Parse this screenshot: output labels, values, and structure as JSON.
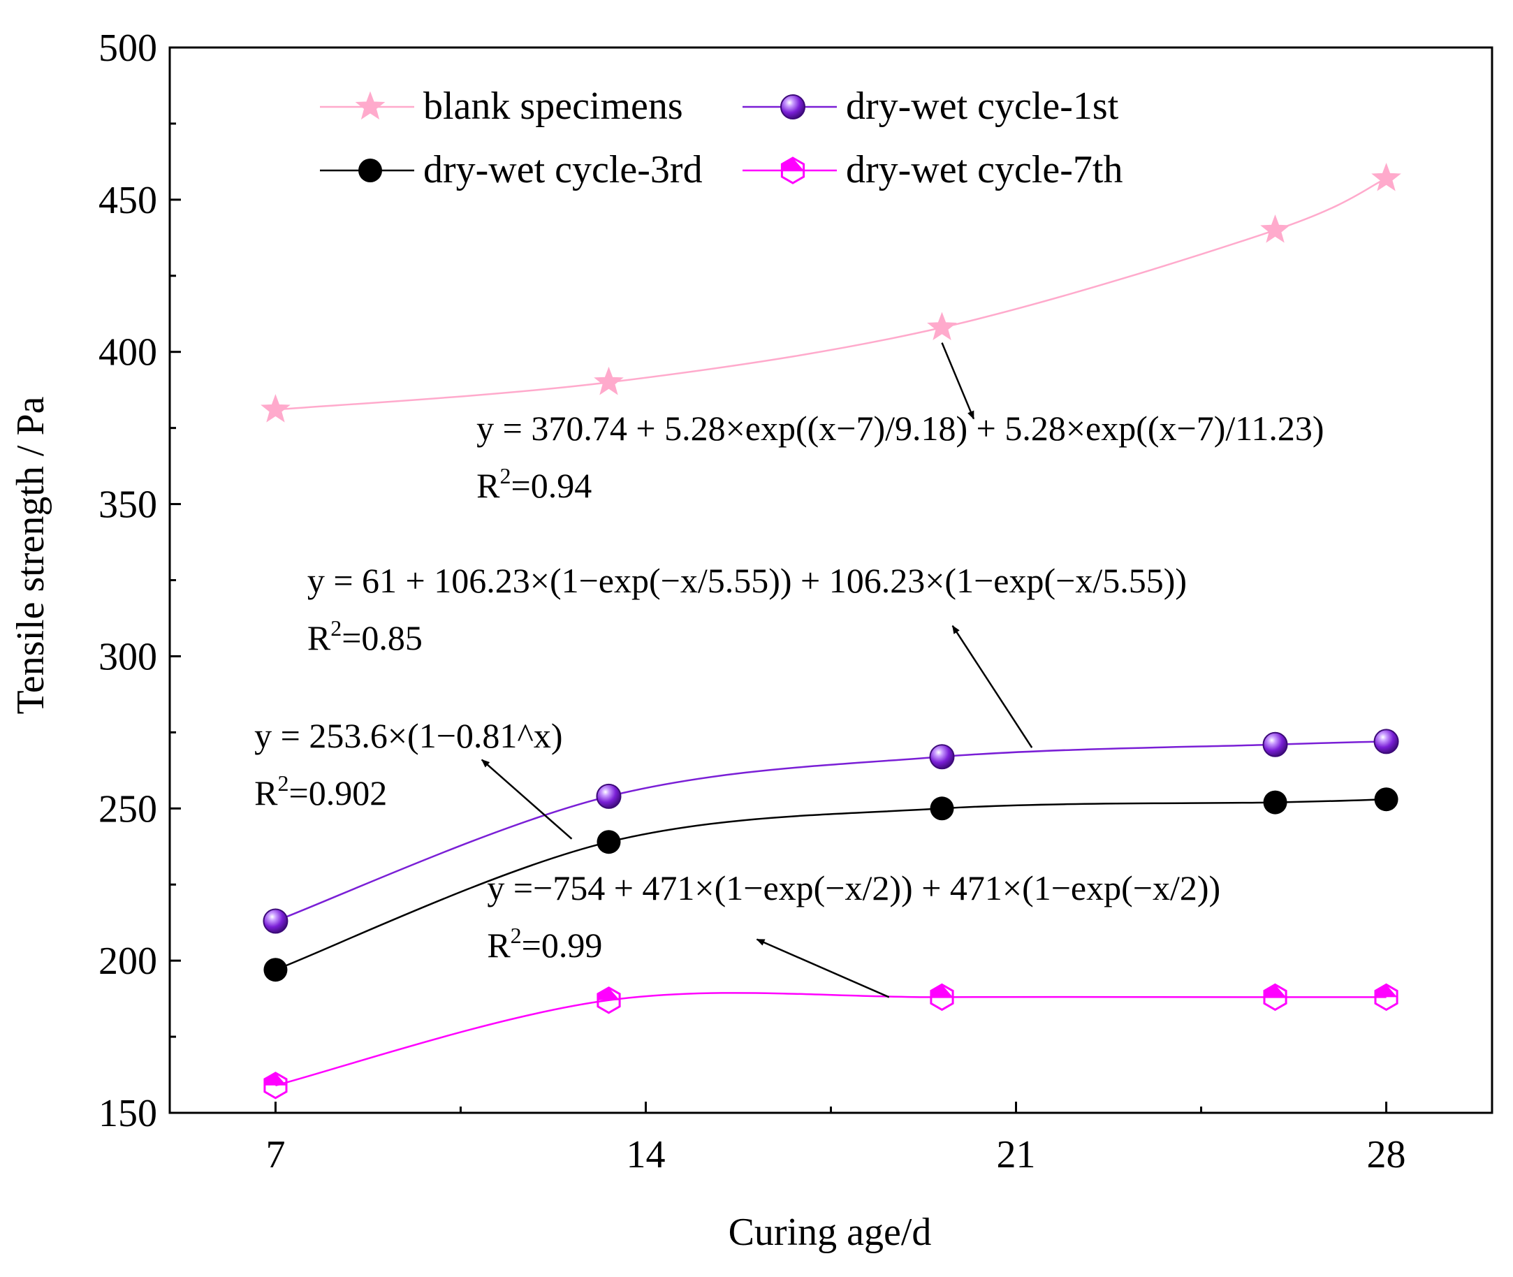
{
  "chart_data": {
    "type": "line",
    "title": "",
    "xlabel": "Curing age/d",
    "ylabel": "Tensile strength / Pa",
    "xlim": [
      5,
      30
    ],
    "ylim": [
      150,
      500
    ],
    "xticks": [
      7,
      14,
      21,
      28
    ],
    "xtick_labels": [
      "7",
      "14",
      "21",
      "28"
    ],
    "yticks": [
      150,
      200,
      250,
      300,
      350,
      400,
      450,
      500
    ],
    "ytick_labels": [
      "150",
      "200",
      "250",
      "300",
      "350",
      "400",
      "450",
      "500"
    ],
    "grid": false,
    "legend_position": "top-left",
    "series": [
      {
        "name": "blank specimens",
        "color": "#ffaacc",
        "marker": "star",
        "x": [
          7,
          13.3,
          19.6,
          25.9,
          28
        ],
        "values": [
          381,
          390,
          408,
          440,
          457
        ]
      },
      {
        "name": "dry-wet cycle-1st",
        "color": "#7a1fd6",
        "marker": "sphere",
        "x": [
          7,
          13.3,
          19.6,
          25.9,
          28
        ],
        "values": [
          213,
          254,
          267,
          271,
          272
        ]
      },
      {
        "name": "dry-wet cycle-3rd",
        "color": "#000000",
        "marker": "circle",
        "x": [
          7,
          13.3,
          19.6,
          25.9,
          28
        ],
        "values": [
          197,
          239,
          250,
          252,
          253
        ]
      },
      {
        "name": "dry-wet cycle-7th",
        "color": "#ff00ff",
        "marker": "hexagon-half",
        "x": [
          7,
          13.3,
          19.6,
          25.9,
          28
        ],
        "values": [
          159,
          187,
          188,
          188,
          188
        ]
      }
    ],
    "annotations": [
      {
        "series": "blank specimens",
        "equation": "y = 370.74 + 5.28×exp((x−7)/9.18) + 5.28×exp((x−7)/11.23)",
        "r2_base": "R",
        "r2_exp": "2",
        "r2_value": "=0.94",
        "text_x": 10.8,
        "text_y": 371,
        "arrow_from": [
          19.6,
          403
        ],
        "arrow_to": [
          20.2,
          378
        ]
      },
      {
        "series": "dry-wet cycle-1st",
        "equation": "y = 61 + 106.23×(1−exp(−x/5.55)) + 106.23×(1−exp(−x/5.55))",
        "r2_base": "R",
        "r2_exp": "2",
        "r2_value": "=0.85",
        "text_x": 7.6,
        "text_y": 321,
        "arrow_from": [
          21.3,
          270
        ],
        "arrow_to": [
          19.8,
          310
        ]
      },
      {
        "series": "dry-wet cycle-3rd",
        "equation": "y = 253.6×(1−0.81^x)",
        "r2_base": "R",
        "r2_exp": "2",
        "r2_value": "=0.902",
        "text_x": 6.6,
        "text_y": 270,
        "arrow_from": [
          12.6,
          240
        ],
        "arrow_to": [
          10.9,
          266
        ]
      },
      {
        "series": "dry-wet cycle-7th",
        "equation": "y =−754 + 471×(1−exp(−x/2)) + 471×(1−exp(−x/2))",
        "r2_base": "R",
        "r2_exp": "2",
        "r2_value": "=0.99",
        "text_x": 11.0,
        "text_y": 220,
        "arrow_from": [
          18.6,
          188
        ],
        "arrow_to": [
          16.1,
          207
        ]
      }
    ]
  }
}
